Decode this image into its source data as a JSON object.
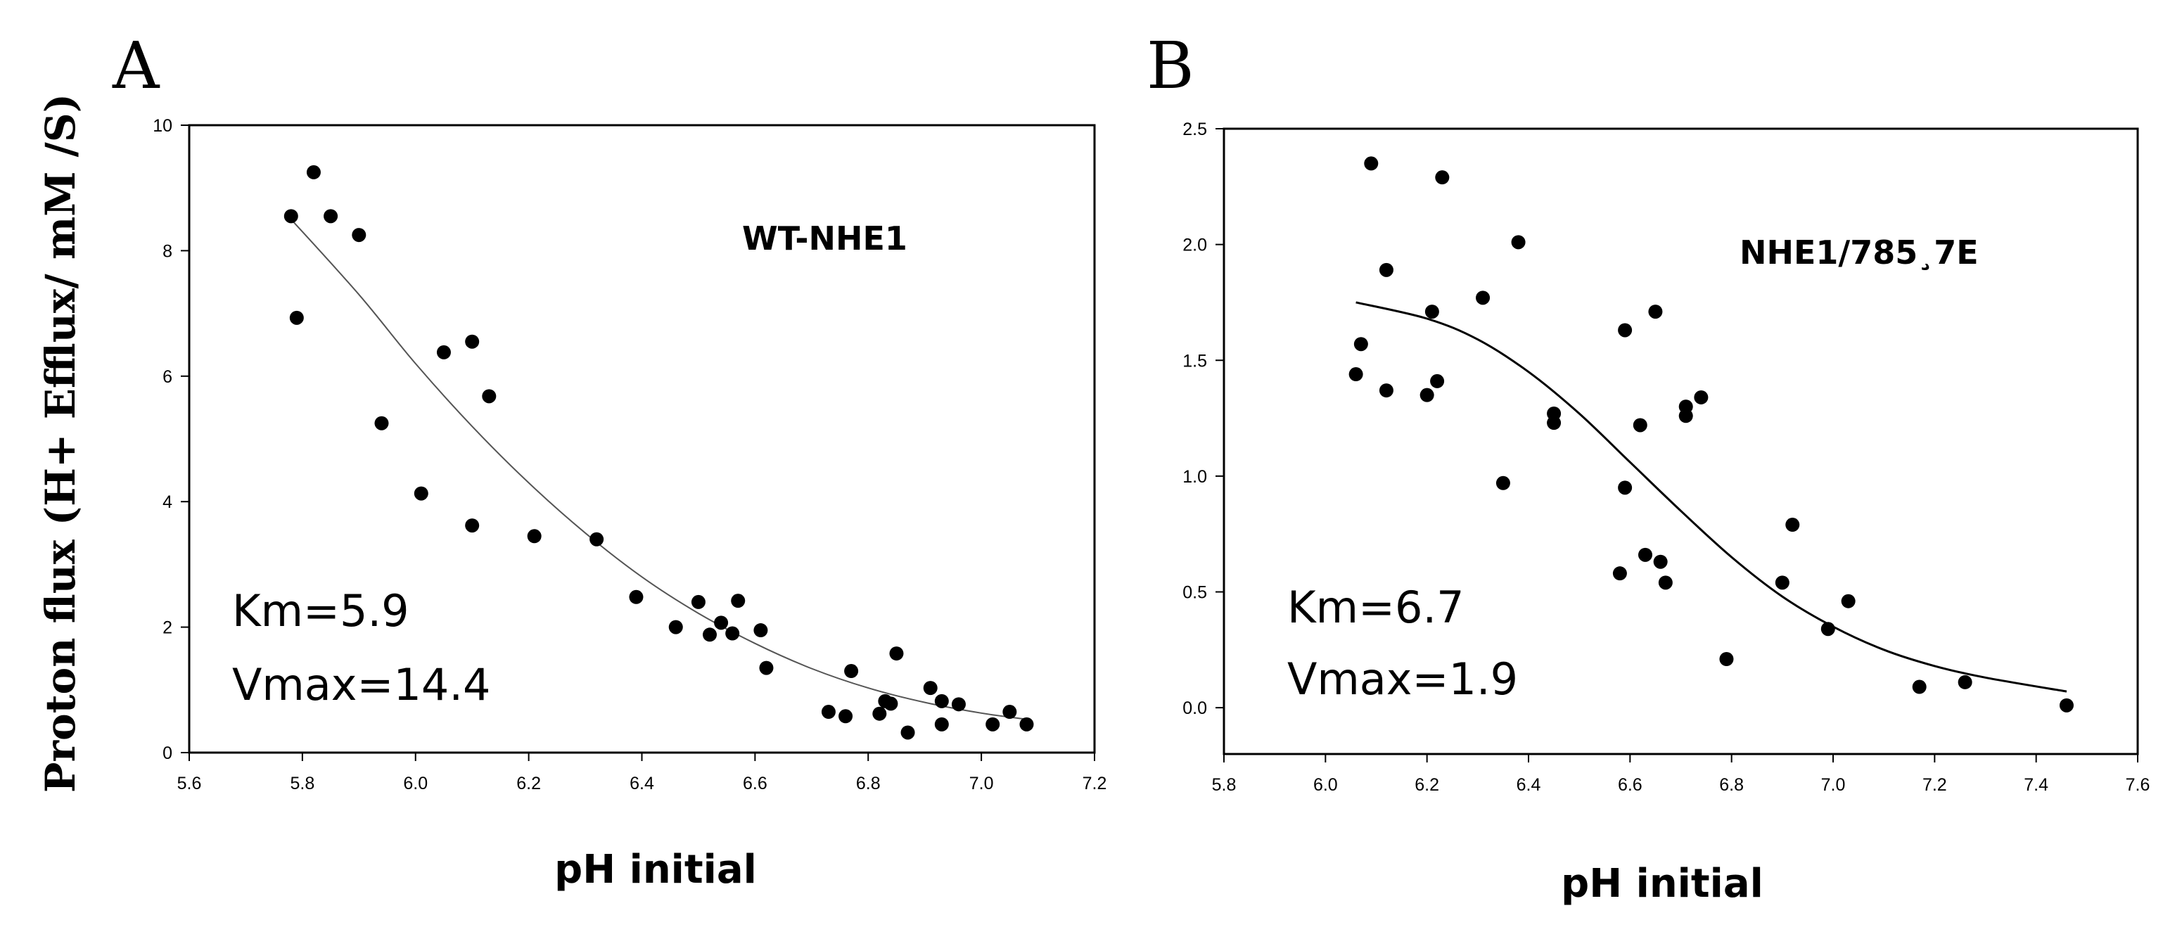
{
  "figure": {
    "y_axis_label": "Proton flux (H+ Efflux/ mM /S)"
  },
  "chart_data": [
    {
      "panel": "A",
      "type": "scatter",
      "title": "",
      "series_label": "WT-NHE1",
      "xlabel": "pH initial",
      "ylabel": "Proton flux (H+ Efflux/ mM /S)",
      "xlim": [
        5.6,
        7.2
      ],
      "ylim": [
        0,
        10
      ],
      "xticks": [
        5.6,
        5.8,
        6.0,
        6.2,
        6.4,
        6.6,
        6.8,
        7.0,
        7.2
      ],
      "yticks": [
        0,
        2,
        4,
        6,
        8,
        10
      ],
      "xtick_labels": [
        "5.6",
        "5.8",
        "6.0",
        "6.2",
        "6.4",
        "6.6",
        "6.8",
        "7.0",
        "7.2"
      ],
      "ytick_labels": [
        "0",
        "2",
        "4",
        "6",
        "8",
        "10"
      ],
      "grid": false,
      "annotations": [
        "Km=5.9",
        "Vmax=14.4"
      ],
      "points": [
        {
          "x": 5.78,
          "y": 8.55
        },
        {
          "x": 5.79,
          "y": 6.93
        },
        {
          "x": 5.82,
          "y": 9.25
        },
        {
          "x": 5.85,
          "y": 8.55
        },
        {
          "x": 5.9,
          "y": 8.25
        },
        {
          "x": 5.94,
          "y": 5.25
        },
        {
          "x": 6.01,
          "y": 4.13
        },
        {
          "x": 6.05,
          "y": 6.38
        },
        {
          "x": 6.1,
          "y": 6.55
        },
        {
          "x": 6.1,
          "y": 3.62
        },
        {
          "x": 6.13,
          "y": 5.68
        },
        {
          "x": 6.21,
          "y": 3.45
        },
        {
          "x": 6.32,
          "y": 3.4
        },
        {
          "x": 6.39,
          "y": 2.48
        },
        {
          "x": 6.46,
          "y": 2.0
        },
        {
          "x": 6.5,
          "y": 2.4
        },
        {
          "x": 6.52,
          "y": 1.88
        },
        {
          "x": 6.54,
          "y": 2.07
        },
        {
          "x": 6.56,
          "y": 1.9
        },
        {
          "x": 6.57,
          "y": 2.42
        },
        {
          "x": 6.61,
          "y": 1.95
        },
        {
          "x": 6.62,
          "y": 1.35
        },
        {
          "x": 6.73,
          "y": 0.65
        },
        {
          "x": 6.76,
          "y": 0.58
        },
        {
          "x": 6.77,
          "y": 1.3
        },
        {
          "x": 6.82,
          "y": 0.62
        },
        {
          "x": 6.83,
          "y": 0.82
        },
        {
          "x": 6.84,
          "y": 0.78
        },
        {
          "x": 6.85,
          "y": 1.58
        },
        {
          "x": 6.87,
          "y": 0.32
        },
        {
          "x": 6.91,
          "y": 1.03
        },
        {
          "x": 6.93,
          "y": 0.82
        },
        {
          "x": 6.93,
          "y": 0.45
        },
        {
          "x": 6.96,
          "y": 0.77
        },
        {
          "x": 7.02,
          "y": 0.45
        },
        {
          "x": 7.05,
          "y": 0.65
        },
        {
          "x": 7.08,
          "y": 0.45
        }
      ],
      "fit_curve": [
        {
          "x": 5.78,
          "y": 8.5
        },
        {
          "x": 5.9,
          "y": 7.3
        },
        {
          "x": 6.0,
          "y": 6.2
        },
        {
          "x": 6.1,
          "y": 5.2
        },
        {
          "x": 6.2,
          "y": 4.3
        },
        {
          "x": 6.3,
          "y": 3.5
        },
        {
          "x": 6.4,
          "y": 2.8
        },
        {
          "x": 6.5,
          "y": 2.22
        },
        {
          "x": 6.6,
          "y": 1.74
        },
        {
          "x": 6.7,
          "y": 1.34
        },
        {
          "x": 6.8,
          "y": 1.03
        },
        {
          "x": 6.9,
          "y": 0.8
        },
        {
          "x": 7.0,
          "y": 0.63
        },
        {
          "x": 7.08,
          "y": 0.53
        }
      ]
    },
    {
      "panel": "B",
      "type": "scatter",
      "title": "",
      "series_label": "NHE1/785¸7E",
      "xlabel": "pH initial",
      "ylabel": "",
      "xlim": [
        5.8,
        7.6
      ],
      "ylim": [
        -0.2,
        2.5
      ],
      "xticks": [
        5.8,
        6.0,
        6.2,
        6.4,
        6.6,
        6.8,
        7.0,
        7.2,
        7.4,
        7.6
      ],
      "yticks": [
        0.0,
        0.5,
        1.0,
        1.5,
        2.0,
        2.5
      ],
      "xtick_labels": [
        "5.8",
        "6.0",
        "6.2",
        "6.4",
        "6.6",
        "6.8",
        "7.0",
        "7.2",
        "7.4",
        "7.6"
      ],
      "ytick_labels": [
        "0.0",
        "0.5",
        "1.0",
        "1.5",
        "2.0",
        "2.5"
      ],
      "grid": false,
      "annotations": [
        "Km=6.7",
        "Vmax=1.9"
      ],
      "points": [
        {
          "x": 6.06,
          "y": 1.44
        },
        {
          "x": 6.07,
          "y": 1.57
        },
        {
          "x": 6.09,
          "y": 2.35
        },
        {
          "x": 6.12,
          "y": 1.89
        },
        {
          "x": 6.12,
          "y": 1.37
        },
        {
          "x": 6.2,
          "y": 1.35
        },
        {
          "x": 6.21,
          "y": 1.71
        },
        {
          "x": 6.22,
          "y": 1.41
        },
        {
          "x": 6.23,
          "y": 2.29
        },
        {
          "x": 6.31,
          "y": 1.77
        },
        {
          "x": 6.35,
          "y": 0.97
        },
        {
          "x": 6.38,
          "y": 2.01
        },
        {
          "x": 6.45,
          "y": 1.27
        },
        {
          "x": 6.45,
          "y": 1.23
        },
        {
          "x": 6.58,
          "y": 0.58
        },
        {
          "x": 6.59,
          "y": 0.95
        },
        {
          "x": 6.59,
          "y": 1.63
        },
        {
          "x": 6.62,
          "y": 1.22
        },
        {
          "x": 6.63,
          "y": 0.66
        },
        {
          "x": 6.65,
          "y": 1.71
        },
        {
          "x": 6.66,
          "y": 0.63
        },
        {
          "x": 6.67,
          "y": 0.54
        },
        {
          "x": 6.71,
          "y": 1.26
        },
        {
          "x": 6.71,
          "y": 1.3
        },
        {
          "x": 6.74,
          "y": 1.34
        },
        {
          "x": 6.79,
          "y": 0.21
        },
        {
          "x": 6.9,
          "y": 0.54
        },
        {
          "x": 6.92,
          "y": 0.79
        },
        {
          "x": 6.99,
          "y": 0.34
        },
        {
          "x": 7.03,
          "y": 0.46
        },
        {
          "x": 7.17,
          "y": 0.09
        },
        {
          "x": 7.26,
          "y": 0.11
        },
        {
          "x": 7.46,
          "y": 0.01
        }
      ],
      "fit_curve": [
        {
          "x": 6.06,
          "y": 1.75
        },
        {
          "x": 6.2,
          "y": 1.68
        },
        {
          "x": 6.3,
          "y": 1.59
        },
        {
          "x": 6.4,
          "y": 1.45
        },
        {
          "x": 6.5,
          "y": 1.27
        },
        {
          "x": 6.6,
          "y": 1.06
        },
        {
          "x": 6.7,
          "y": 0.85
        },
        {
          "x": 6.8,
          "y": 0.65
        },
        {
          "x": 6.9,
          "y": 0.48
        },
        {
          "x": 7.0,
          "y": 0.35
        },
        {
          "x": 7.1,
          "y": 0.25
        },
        {
          "x": 7.2,
          "y": 0.18
        },
        {
          "x": 7.3,
          "y": 0.13
        },
        {
          "x": 7.46,
          "y": 0.07
        }
      ]
    }
  ]
}
